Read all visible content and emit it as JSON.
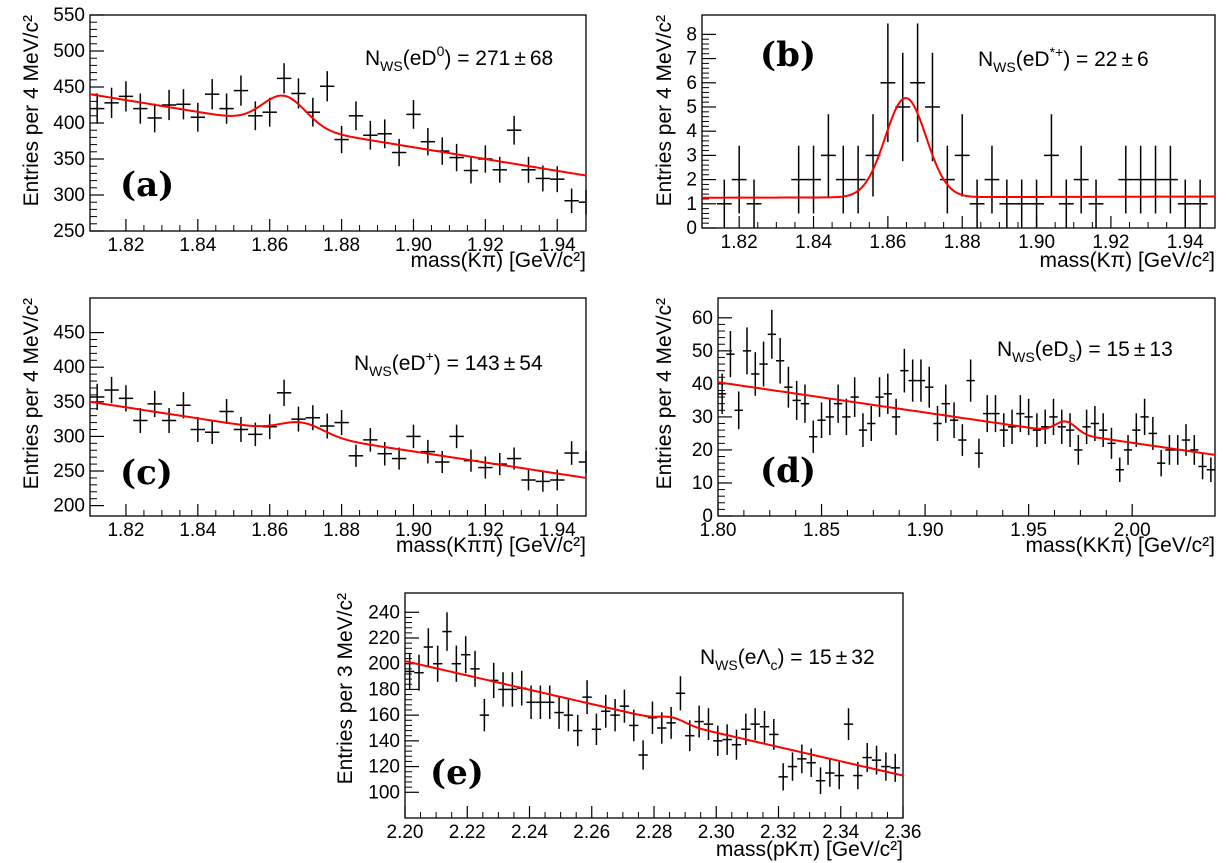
{
  "chart_data": [
    {
      "type": "scatter",
      "panel": "(a)",
      "ylabel": "Entries per 4 MeV/c²",
      "xlabel": "mass(Kπ) [GeV/c²]",
      "annotation": "N_WS(eD⁰) = 271 ± 68",
      "xlim": [
        1.81,
        1.948
      ],
      "ylim": [
        250,
        550
      ],
      "xticks": [
        1.82,
        1.84,
        1.86,
        1.88,
        1.9,
        1.92,
        1.94
      ],
      "xtick_labels": [
        "1.82",
        "1.84",
        "1.86",
        "1.88",
        "1.90",
        "1.92",
        "1.94"
      ],
      "yticks": [
        250,
        300,
        350,
        400,
        450,
        500,
        550
      ],
      "binwidth": 0.004,
      "x": [
        1.812,
        1.816,
        1.82,
        1.824,
        1.828,
        1.832,
        1.836,
        1.84,
        1.844,
        1.848,
        1.852,
        1.856,
        1.86,
        1.864,
        1.868,
        1.872,
        1.876,
        1.88,
        1.884,
        1.888,
        1.892,
        1.896,
        1.9,
        1.904,
        1.908,
        1.912,
        1.916,
        1.92,
        1.924,
        1.928,
        1.932,
        1.936,
        1.94,
        1.944,
        1.948
      ],
      "y": [
        420,
        428,
        437,
        420,
        407,
        425,
        426,
        408,
        440,
        420,
        445,
        410,
        415,
        462,
        441,
        415,
        451,
        377,
        410,
        383,
        385,
        359,
        412,
        374,
        361,
        352,
        334,
        350,
        335,
        390,
        335,
        323,
        322,
        292,
        290
      ],
      "yerr": [
        21,
        21,
        21,
        21,
        20,
        21,
        21,
        20,
        21,
        21,
        21,
        20,
        20,
        21,
        21,
        20,
        21,
        19,
        20,
        20,
        20,
        19,
        20,
        19,
        19,
        19,
        18,
        19,
        18,
        20,
        18,
        18,
        18,
        17,
        17
      ],
      "fit": {
        "background_line": {
          "x": [
            1.81,
            1.948
          ],
          "y": [
            440,
            327
          ]
        },
        "gaussian": {
          "mean": 1.864,
          "sigma": 0.006,
          "amplitude": 42
        },
        "color": "#ff0000"
      }
    },
    {
      "type": "scatter",
      "panel": "(b)",
      "ylabel": "Entries per 4 MeV/c²",
      "xlabel": "mass(Kπ) [GeV/c²]",
      "annotation": "N_WS(eD*⁺) = 22 ± 6",
      "xlim": [
        1.81,
        1.948
      ],
      "ylim": [
        0,
        8.8
      ],
      "xticks": [
        1.82,
        1.84,
        1.86,
        1.88,
        1.9,
        1.92,
        1.94
      ],
      "xtick_labels": [
        "1.82",
        "1.84",
        "1.86",
        "1.88",
        "1.90",
        "1.92",
        "1.94"
      ],
      "yticks": [
        0,
        1,
        2,
        3,
        4,
        5,
        6,
        7,
        8
      ],
      "binwidth": 0.004,
      "x": [
        1.816,
        1.82,
        1.824,
        1.836,
        1.84,
        1.844,
        1.848,
        1.852,
        1.856,
        1.86,
        1.864,
        1.868,
        1.872,
        1.876,
        1.88,
        1.884,
        1.888,
        1.892,
        1.896,
        1.9,
        1.904,
        1.908,
        1.912,
        1.916,
        1.924,
        1.928,
        1.932,
        1.936,
        1.94,
        1.944
      ],
      "y": [
        1,
        2,
        1,
        2,
        2,
        3,
        2,
        2,
        3,
        6,
        5,
        6,
        5,
        2,
        3,
        1,
        2,
        1,
        1,
        1,
        3,
        1,
        2,
        1,
        2,
        2,
        2,
        2,
        1,
        1
      ],
      "yerr": [
        1.0,
        1.4,
        1.0,
        1.4,
        1.4,
        1.7,
        1.4,
        1.4,
        1.7,
        2.45,
        2.24,
        2.45,
        2.24,
        1.4,
        1.7,
        1.0,
        1.4,
        1.0,
        1.0,
        1.0,
        1.7,
        1.0,
        1.4,
        1.0,
        1.4,
        1.4,
        1.4,
        1.4,
        1.0,
        1.0
      ],
      "fit": {
        "background_line": {
          "x": [
            1.81,
            1.948
          ],
          "y": [
            1.25,
            1.3
          ]
        },
        "gaussian": {
          "mean": 1.8648,
          "sigma": 0.0055,
          "amplitude": 4.1
        },
        "color": "#ff0000"
      }
    },
    {
      "type": "scatter",
      "panel": "(c)",
      "ylabel": "Entries per 4 MeV/c²",
      "xlabel": "mass(Kππ) [GeV/c²]",
      "annotation": "N_WS(eD⁺) = 143 ± 54",
      "xlim": [
        1.81,
        1.948
      ],
      "ylim": [
        185,
        500
      ],
      "xticks": [
        1.82,
        1.84,
        1.86,
        1.88,
        1.9,
        1.92,
        1.94
      ],
      "xtick_labels": [
        "1.82",
        "1.84",
        "1.86",
        "1.88",
        "1.90",
        "1.92",
        "1.94"
      ],
      "yticks": [
        200,
        250,
        300,
        350,
        400,
        450
      ],
      "binwidth": 0.004,
      "x": [
        1.812,
        1.816,
        1.82,
        1.824,
        1.828,
        1.832,
        1.836,
        1.84,
        1.844,
        1.848,
        1.852,
        1.856,
        1.86,
        1.864,
        1.868,
        1.872,
        1.876,
        1.88,
        1.884,
        1.888,
        1.892,
        1.896,
        1.9,
        1.904,
        1.908,
        1.912,
        1.916,
        1.92,
        1.924,
        1.928,
        1.932,
        1.936,
        1.94,
        1.944,
        1.948
      ],
      "y": [
        357,
        367,
        355,
        323,
        347,
        323,
        345,
        310,
        306,
        336,
        310,
        303,
        314,
        363,
        325,
        327,
        315,
        320,
        272,
        295,
        275,
        268,
        300,
        278,
        263,
        300,
        265,
        255,
        260,
        268,
        237,
        235,
        237,
        276,
        263
      ],
      "yerr": [
        19,
        19,
        19,
        18,
        19,
        18,
        19,
        18,
        17,
        18,
        18,
        17,
        18,
        19,
        18,
        18,
        18,
        18,
        16,
        17,
        17,
        16,
        17,
        17,
        16,
        17,
        16,
        16,
        16,
        16,
        15,
        15,
        15,
        17,
        16
      ],
      "fit": {
        "background_line": {
          "x": [
            1.81,
            1.948
          ],
          "y": [
            350,
            240
          ]
        },
        "gaussian": {
          "mean": 1.869,
          "sigma": 0.006,
          "amplitude": 17
        },
        "color": "#ff0000"
      }
    },
    {
      "type": "scatter",
      "panel": "(d)",
      "ylabel": "Entries per 4 MeV/c²",
      "xlabel": "mass(KKπ) [GeV/c²]",
      "annotation": "N_WS(eD_s) = 15 ± 13",
      "xlim": [
        1.8,
        2.04
      ],
      "ylim": [
        0,
        66
      ],
      "xticks": [
        1.8,
        1.85,
        1.9,
        1.95,
        2.0
      ],
      "xtick_labels": [
        "1.80",
        "1.85",
        "1.90",
        "1.95",
        "2.00"
      ],
      "yticks": [
        0,
        10,
        20,
        30,
        40,
        50,
        60
      ],
      "binwidth": 0.004,
      "x": [
        1.802,
        1.806,
        1.81,
        1.814,
        1.818,
        1.822,
        1.826,
        1.83,
        1.834,
        1.838,
        1.842,
        1.846,
        1.85,
        1.854,
        1.858,
        1.862,
        1.866,
        1.87,
        1.874,
        1.878,
        1.882,
        1.886,
        1.89,
        1.894,
        1.898,
        1.902,
        1.906,
        1.91,
        1.914,
        1.918,
        1.922,
        1.926,
        1.93,
        1.934,
        1.938,
        1.942,
        1.946,
        1.95,
        1.954,
        1.958,
        1.962,
        1.966,
        1.97,
        1.974,
        1.978,
        1.982,
        1.986,
        1.99,
        1.994,
        1.998,
        2.002,
        2.006,
        2.01,
        2.014,
        2.018,
        2.022,
        2.026,
        2.03,
        2.034,
        2.038
      ],
      "y": [
        37,
        49,
        32,
        50,
        43,
        46,
        55,
        47,
        39,
        35,
        34,
        24,
        29,
        30,
        34,
        30,
        36,
        26,
        28,
        36,
        37,
        30,
        44,
        41,
        41,
        39,
        28,
        34,
        29,
        23,
        41,
        19,
        31,
        31,
        26,
        27,
        31,
        30,
        26,
        27,
        30,
        27,
        26,
        20,
        27,
        28,
        26,
        22,
        14,
        20,
        26,
        30,
        25,
        16,
        20,
        20,
        23,
        20,
        15,
        14
      ],
      "yerr": [
        6.1,
        7.0,
        5.7,
        7.1,
        6.6,
        6.8,
        7.4,
        6.9,
        6.2,
        5.9,
        5.8,
        4.9,
        5.4,
        5.5,
        5.8,
        5.5,
        6.0,
        5.1,
        5.3,
        6.0,
        6.1,
        5.5,
        6.6,
        6.4,
        6.4,
        6.2,
        5.3,
        5.8,
        5.4,
        4.8,
        6.4,
        4.4,
        5.6,
        5.6,
        5.1,
        5.2,
        5.6,
        5.5,
        5.1,
        5.2,
        5.5,
        5.2,
        5.1,
        4.5,
        5.2,
        5.3,
        5.1,
        4.7,
        3.7,
        4.5,
        5.1,
        5.5,
        5.0,
        4.0,
        4.5,
        4.5,
        4.8,
        4.5,
        3.9,
        3.7
      ],
      "fit": {
        "background_line": {
          "x": [
            1.8,
            2.04
          ],
          "y": [
            40.5,
            18.5
          ]
        },
        "gaussian": {
          "mean": 1.968,
          "sigma": 0.005,
          "amplitude": 3.5
        },
        "color": "#ff0000"
      }
    },
    {
      "type": "scatter",
      "panel": "(e)",
      "ylabel": "Entries per 3 MeV/c²",
      "xlabel": "mass(pKπ) [GeV/c²]",
      "annotation": "N_WS(eΛ_c) = 15 ± 32",
      "xlim": [
        2.2,
        2.36
      ],
      "ylim": [
        80,
        255
      ],
      "xticks": [
        2.2,
        2.22,
        2.24,
        2.26,
        2.28,
        2.3,
        2.32,
        2.34,
        2.36
      ],
      "xtick_labels": [
        "2.20",
        "2.22",
        "2.24",
        "2.26",
        "2.28",
        "2.30",
        "2.32",
        "2.34",
        "2.36"
      ],
      "yticks": [
        100,
        120,
        140,
        160,
        180,
        200,
        220,
        240
      ],
      "binwidth": 0.003,
      "x": [
        2.2015,
        2.2045,
        2.2075,
        2.2105,
        2.2135,
        2.2165,
        2.2195,
        2.2225,
        2.2255,
        2.2285,
        2.2315,
        2.2345,
        2.2375,
        2.2405,
        2.2435,
        2.2465,
        2.2495,
        2.2525,
        2.2555,
        2.2585,
        2.2615,
        2.2645,
        2.2675,
        2.2705,
        2.2735,
        2.2765,
        2.2795,
        2.2825,
        2.2855,
        2.2885,
        2.2915,
        2.2945,
        2.2975,
        2.3005,
        2.3035,
        2.3065,
        2.3095,
        2.3125,
        2.3155,
        2.3185,
        2.3215,
        2.3245,
        2.3275,
        2.3305,
        2.3335,
        2.3365,
        2.3395,
        2.3425,
        2.3455,
        2.3485,
        2.3515,
        2.3545,
        2.3575
      ],
      "y": [
        194,
        193,
        213,
        200,
        225,
        200,
        207,
        196,
        160,
        187,
        180,
        180,
        181,
        170,
        170,
        170,
        162,
        160,
        148,
        174,
        149,
        163,
        160,
        167,
        152,
        129,
        158,
        150,
        154,
        177,
        144,
        155,
        153,
        140,
        141,
        137,
        149,
        153,
        151,
        145,
        112,
        120,
        126,
        123,
        109,
        115,
        113,
        153,
        113,
        127,
        125,
        120,
        119
      ],
      "yerr": [
        14,
        14,
        14.6,
        14.1,
        15,
        14.1,
        14.4,
        14,
        12.6,
        13.7,
        13.4,
        13.4,
        13.5,
        13,
        13,
        13,
        12.7,
        12.6,
        12.2,
        13.2,
        12.2,
        12.8,
        12.6,
        12.9,
        12.3,
        11.4,
        12.6,
        12.2,
        12.4,
        13.3,
        12,
        12.4,
        12.4,
        11.8,
        11.9,
        11.7,
        12.2,
        12.4,
        12.3,
        12,
        10.6,
        11,
        11.2,
        11.1,
        10.4,
        10.7,
        10.6,
        12.4,
        10.6,
        11.3,
        11.2,
        11,
        10.9
      ],
      "fit": {
        "background_line": {
          "x": [
            2.2,
            2.36
          ],
          "y": [
            202,
            113
          ]
        },
        "gaussian": {
          "mean": 2.286,
          "sigma": 0.004,
          "amplitude": 4
        },
        "color": "#ff0000"
      }
    }
  ]
}
